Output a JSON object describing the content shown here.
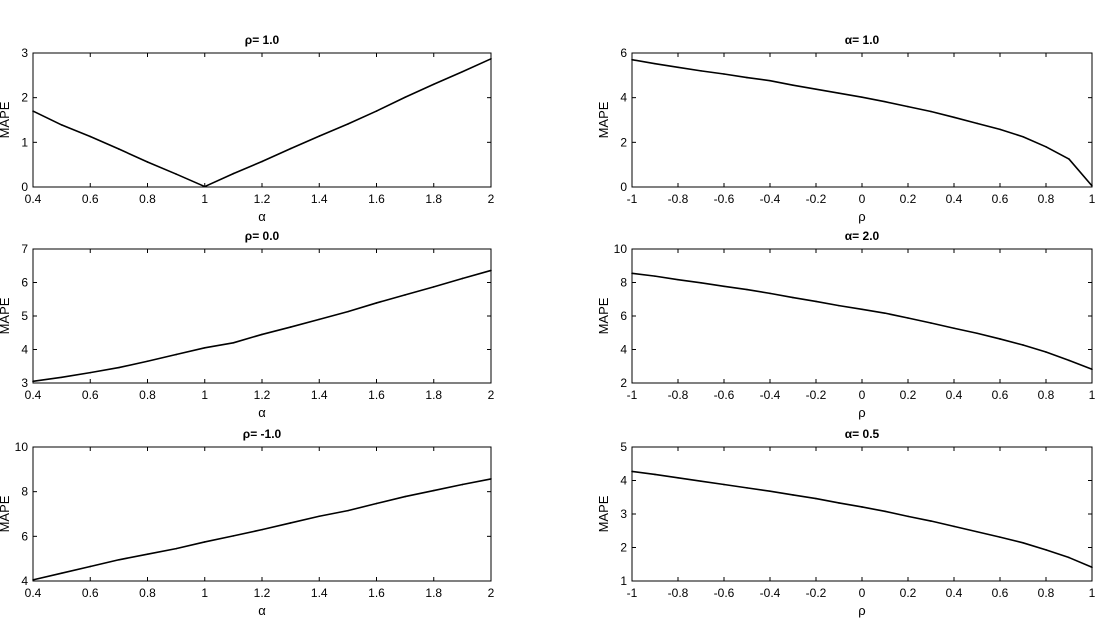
{
  "chart_data": [
    {
      "type": "line",
      "title": "ρ= 1.0",
      "xlabel": "α",
      "ylabel": "MAPE",
      "xlim": [
        0.4,
        2
      ],
      "ylim": [
        0,
        3
      ],
      "xticks": [
        "0.4",
        "0.6",
        "0.8",
        "1",
        "1.2",
        "1.4",
        "1.6",
        "1.8",
        "2"
      ],
      "yticks": [
        "0",
        "1",
        "2",
        "3"
      ],
      "grid": false,
      "series": [
        {
          "x": [
            0.4,
            0.5,
            0.6,
            0.7,
            0.8,
            0.9,
            1.0,
            1.1,
            1.2,
            1.3,
            1.4,
            1.5,
            1.6,
            1.7,
            1.8,
            1.9,
            2.0
          ],
          "y": [
            1.7,
            1.39,
            1.13,
            0.85,
            0.56,
            0.29,
            0.01,
            0.3,
            0.57,
            0.86,
            1.14,
            1.41,
            1.7,
            2.01,
            2.3,
            2.58,
            2.87
          ]
        }
      ]
    },
    {
      "type": "line",
      "title": "α= 1.0",
      "xlabel": "ρ",
      "ylabel": "MAPE",
      "xlim": [
        -1,
        1
      ],
      "ylim": [
        0,
        6
      ],
      "xticks": [
        "-1",
        "-0.8",
        "-0.6",
        "-0.4",
        "-0.2",
        "0",
        "0.2",
        "0.4",
        "0.6",
        "0.8",
        "1"
      ],
      "yticks": [
        "0",
        "2",
        "4",
        "6"
      ],
      "grid": false,
      "series": [
        {
          "x": [
            -1,
            -0.9,
            -0.8,
            -0.7,
            -0.6,
            -0.5,
            -0.4,
            -0.3,
            -0.2,
            -0.1,
            0,
            0.1,
            0.2,
            0.3,
            0.4,
            0.5,
            0.6,
            0.7,
            0.8,
            0.9,
            1.0
          ],
          "y": [
            5.7,
            5.52,
            5.36,
            5.2,
            5.06,
            4.9,
            4.76,
            4.56,
            4.38,
            4.2,
            4.02,
            3.82,
            3.6,
            3.38,
            3.12,
            2.85,
            2.58,
            2.25,
            1.8,
            1.25,
            0.05
          ]
        }
      ]
    },
    {
      "type": "line",
      "title": "ρ= 0.0",
      "xlabel": "α",
      "ylabel": "MAPE",
      "xlim": [
        0.4,
        2
      ],
      "ylim": [
        3,
        7
      ],
      "xticks": [
        "0.4",
        "0.6",
        "0.8",
        "1",
        "1.2",
        "1.4",
        "1.6",
        "1.8",
        "2"
      ],
      "yticks": [
        "3",
        "4",
        "5",
        "6",
        "7"
      ],
      "grid": false,
      "series": [
        {
          "x": [
            0.4,
            0.5,
            0.6,
            0.7,
            0.8,
            0.9,
            1.0,
            1.1,
            1.2,
            1.3,
            1.4,
            1.5,
            1.6,
            1.7,
            1.8,
            1.9,
            2.0
          ],
          "y": [
            3.05,
            3.17,
            3.31,
            3.46,
            3.65,
            3.85,
            4.05,
            4.2,
            4.45,
            4.67,
            4.9,
            5.13,
            5.39,
            5.63,
            5.87,
            6.12,
            6.36
          ]
        }
      ]
    },
    {
      "type": "line",
      "title": "α= 2.0",
      "xlabel": "ρ",
      "ylabel": "MAPE",
      "xlim": [
        -1,
        1
      ],
      "ylim": [
        2,
        10
      ],
      "xticks": [
        "-1",
        "-0.8",
        "-0.6",
        "-0.4",
        "-0.2",
        "0",
        "0.2",
        "0.4",
        "0.6",
        "0.8",
        "1"
      ],
      "yticks": [
        "2",
        "4",
        "6",
        "8",
        "10"
      ],
      "grid": false,
      "series": [
        {
          "x": [
            -1,
            -0.9,
            -0.8,
            -0.7,
            -0.6,
            -0.5,
            -0.4,
            -0.3,
            -0.2,
            -0.1,
            0,
            0.1,
            0.2,
            0.3,
            0.4,
            0.5,
            0.6,
            0.7,
            0.8,
            0.9,
            1.0
          ],
          "y": [
            8.55,
            8.38,
            8.17,
            7.98,
            7.77,
            7.58,
            7.35,
            7.1,
            6.87,
            6.62,
            6.4,
            6.17,
            5.88,
            5.58,
            5.27,
            4.97,
            4.63,
            4.27,
            3.85,
            3.35,
            2.82
          ]
        }
      ]
    },
    {
      "type": "line",
      "title": "ρ= -1.0",
      "xlabel": "α",
      "ylabel": "MAPE",
      "xlim": [
        0.4,
        2
      ],
      "ylim": [
        4,
        10
      ],
      "xticks": [
        "0.4",
        "0.6",
        "0.8",
        "1",
        "1.2",
        "1.4",
        "1.6",
        "1.8",
        "2"
      ],
      "yticks": [
        "4",
        "6",
        "8",
        "10"
      ],
      "grid": false,
      "series": [
        {
          "x": [
            0.4,
            0.5,
            0.6,
            0.7,
            0.8,
            0.9,
            1.0,
            1.1,
            1.2,
            1.3,
            1.4,
            1.5,
            1.6,
            1.7,
            1.8,
            1.9,
            2.0
          ],
          "y": [
            4.05,
            4.35,
            4.65,
            4.95,
            5.2,
            5.45,
            5.75,
            6.02,
            6.3,
            6.6,
            6.9,
            7.15,
            7.47,
            7.78,
            8.05,
            8.32,
            8.57
          ]
        }
      ]
    },
    {
      "type": "line",
      "title": "α= 0.5",
      "xlabel": "ρ",
      "ylabel": "MAPE",
      "xlim": [
        -1,
        1
      ],
      "ylim": [
        1,
        5
      ],
      "xticks": [
        "-1",
        "-0.8",
        "-0.6",
        "-0.4",
        "-0.2",
        "0",
        "0.2",
        "0.4",
        "0.6",
        "0.8",
        "1"
      ],
      "yticks": [
        "1",
        "2",
        "3",
        "4",
        "5"
      ],
      "grid": false,
      "series": [
        {
          "x": [
            -1,
            -0.9,
            -0.8,
            -0.7,
            -0.6,
            -0.5,
            -0.4,
            -0.3,
            -0.2,
            -0.1,
            0,
            0.1,
            0.2,
            0.3,
            0.4,
            0.5,
            0.6,
            0.7,
            0.8,
            0.9,
            1.0
          ],
          "y": [
            4.27,
            4.18,
            4.08,
            3.98,
            3.88,
            3.78,
            3.68,
            3.57,
            3.46,
            3.33,
            3.21,
            3.08,
            2.93,
            2.79,
            2.63,
            2.47,
            2.31,
            2.14,
            1.93,
            1.7,
            1.41
          ]
        }
      ]
    }
  ]
}
